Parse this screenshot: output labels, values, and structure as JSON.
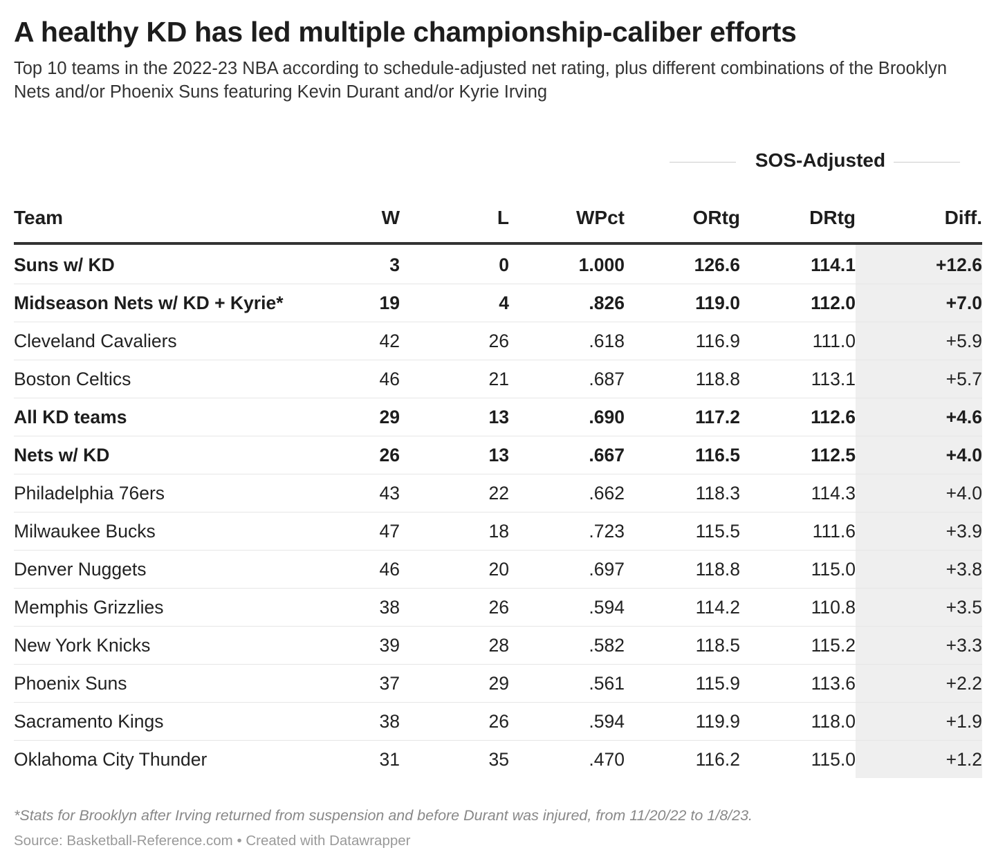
{
  "title": "A healthy KD has led multiple championship-caliber efforts",
  "subtitle": "Top 10 teams in the 2022-23 NBA according to schedule-adjusted net rating, plus different combinations of the Brooklyn Nets and/or Phoenix Suns featuring Kevin Durant and/or Kyrie Irving",
  "group_header": "SOS-Adjusted",
  "columns": {
    "team": "Team",
    "w": "W",
    "l": "L",
    "wpct": "WPct",
    "ortg": "ORtg",
    "drtg": "DRtg",
    "diff": "Diff."
  },
  "chart_data": {
    "type": "table",
    "title": "A healthy KD has led multiple championship-caliber efforts",
    "columns": [
      "Team",
      "W",
      "L",
      "WPct",
      "ORtg",
      "DRtg",
      "Diff."
    ],
    "column_group": {
      "label": "SOS-Adjusted",
      "columns": [
        "ORtg",
        "DRtg",
        "Diff."
      ]
    },
    "highlight_column": "Diff.",
    "highlight_color": "#efefef",
    "rows": [
      {
        "team": "Suns w/ KD",
        "w": "3",
        "l": "0",
        "wpct": "1.000",
        "ortg": "126.6",
        "drtg": "114.1",
        "diff": "+12.6",
        "bold": true
      },
      {
        "team": "Midseason Nets w/ KD + Kyrie*",
        "w": "19",
        "l": "4",
        "wpct": ".826",
        "ortg": "119.0",
        "drtg": "112.0",
        "diff": "+7.0",
        "bold": true
      },
      {
        "team": "Cleveland Cavaliers",
        "w": "42",
        "l": "26",
        "wpct": ".618",
        "ortg": "116.9",
        "drtg": "111.0",
        "diff": "+5.9",
        "bold": false
      },
      {
        "team": "Boston Celtics",
        "w": "46",
        "l": "21",
        "wpct": ".687",
        "ortg": "118.8",
        "drtg": "113.1",
        "diff": "+5.7",
        "bold": false
      },
      {
        "team": "All KD teams",
        "w": "29",
        "l": "13",
        "wpct": ".690",
        "ortg": "117.2",
        "drtg": "112.6",
        "diff": "+4.6",
        "bold": true
      },
      {
        "team": "Nets w/ KD",
        "w": "26",
        "l": "13",
        "wpct": ".667",
        "ortg": "116.5",
        "drtg": "112.5",
        "diff": "+4.0",
        "bold": true
      },
      {
        "team": "Philadelphia 76ers",
        "w": "43",
        "l": "22",
        "wpct": ".662",
        "ortg": "118.3",
        "drtg": "114.3",
        "diff": "+4.0",
        "bold": false
      },
      {
        "team": "Milwaukee Bucks",
        "w": "47",
        "l": "18",
        "wpct": ".723",
        "ortg": "115.5",
        "drtg": "111.6",
        "diff": "+3.9",
        "bold": false
      },
      {
        "team": "Denver Nuggets",
        "w": "46",
        "l": "20",
        "wpct": ".697",
        "ortg": "118.8",
        "drtg": "115.0",
        "diff": "+3.8",
        "bold": false
      },
      {
        "team": "Memphis Grizzlies",
        "w": "38",
        "l": "26",
        "wpct": ".594",
        "ortg": "114.2",
        "drtg": "110.8",
        "diff": "+3.5",
        "bold": false
      },
      {
        "team": "New York Knicks",
        "w": "39",
        "l": "28",
        "wpct": ".582",
        "ortg": "118.5",
        "drtg": "115.2",
        "diff": "+3.3",
        "bold": false
      },
      {
        "team": "Phoenix Suns",
        "w": "37",
        "l": "29",
        "wpct": ".561",
        "ortg": "115.9",
        "drtg": "113.6",
        "diff": "+2.2",
        "bold": false
      },
      {
        "team": "Sacramento Kings",
        "w": "38",
        "l": "26",
        "wpct": ".594",
        "ortg": "119.9",
        "drtg": "118.0",
        "diff": "+1.9",
        "bold": false
      },
      {
        "team": "Oklahoma City Thunder",
        "w": "31",
        "l": "35",
        "wpct": ".470",
        "ortg": "116.2",
        "drtg": "115.0",
        "diff": "+1.2",
        "bold": false
      }
    ]
  },
  "footnote": "*Stats for Brooklyn after Irving returned from suspension and before Durant was injured, from 11/20/22 to 1/8/23.",
  "source": "Source: Basketball-Reference.com • Created with Datawrapper"
}
